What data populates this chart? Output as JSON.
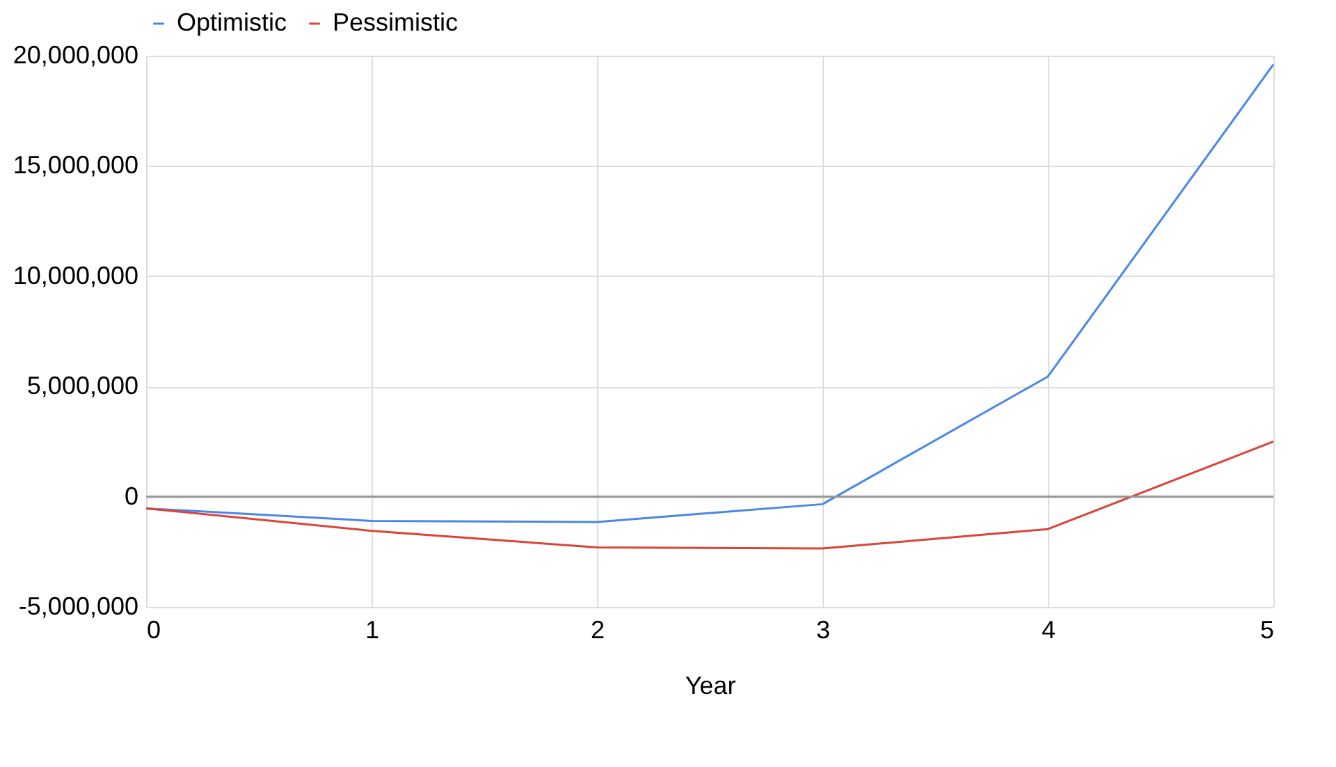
{
  "chart_data": {
    "type": "line",
    "xlabel": "Year",
    "x": [
      0,
      1,
      2,
      3,
      4,
      5
    ],
    "series": [
      {
        "name": "Optimistic",
        "color": "#4a86e8",
        "values": [
          -530000,
          -1100000,
          -1150000,
          -340000,
          5450000,
          19600000
        ]
      },
      {
        "name": "Pessimistic",
        "color": "#db4437",
        "values": [
          -530000,
          -1550000,
          -2300000,
          -2350000,
          -1470000,
          2500000
        ]
      }
    ],
    "xlim": [
      0,
      5
    ],
    "xticks": [
      0,
      1,
      2,
      3,
      4,
      5
    ],
    "ylim": [
      -5000000,
      20000000
    ],
    "yticks": [
      {
        "value": -5000000,
        "label": "-5,000,000"
      },
      0,
      {
        "value": 5000000,
        "label": "5,000,000"
      },
      {
        "value": 10000000,
        "label": "10,000,000"
      },
      {
        "value": 15000000,
        "label": "15,000,000"
      },
      {
        "value": 20000000,
        "label": "20,000,000"
      }
    ],
    "ref_lines": [
      {
        "axis": "y",
        "value": 0,
        "color": "#999999"
      }
    ],
    "grid": true,
    "legend": "top",
    "marker": "none",
    "line_style": "solid"
  }
}
